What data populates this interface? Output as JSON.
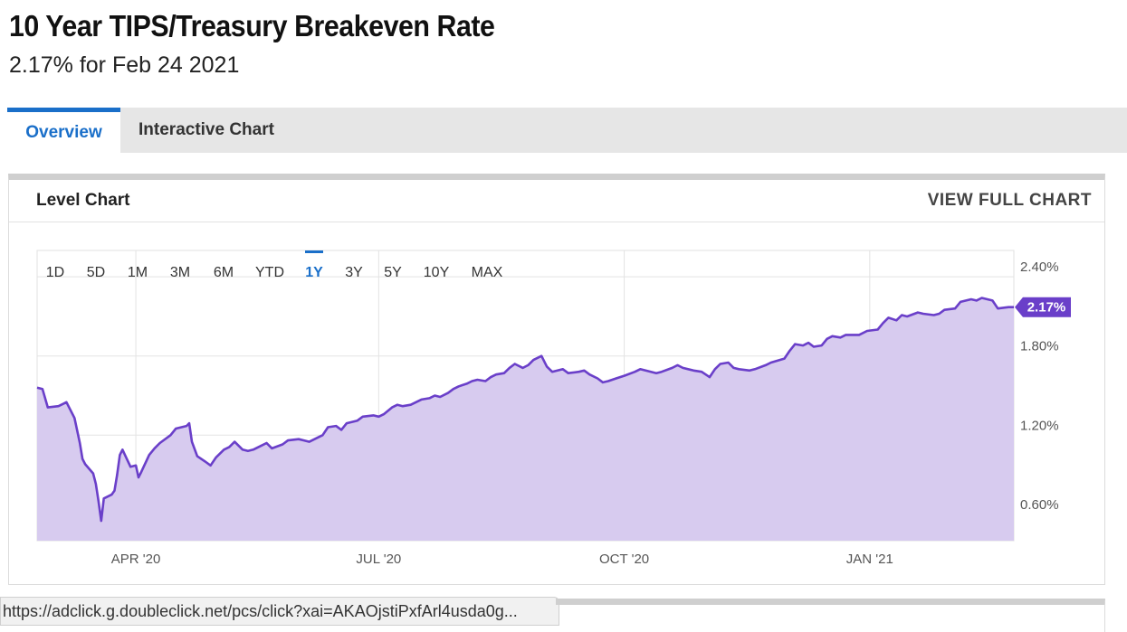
{
  "header": {
    "title": "10 Year TIPS/Treasury Breakeven Rate",
    "subtitle": "2.17% for Feb 24 2021"
  },
  "tabs": [
    {
      "label": "Overview",
      "active": true
    },
    {
      "label": "Interactive Chart",
      "active": false
    }
  ],
  "card": {
    "title": "Level Chart",
    "link_label": "VIEW FULL CHART"
  },
  "range_buttons": {
    "labels": [
      "1D",
      "5D",
      "1M",
      "3M",
      "6M",
      "YTD",
      "1Y",
      "3Y",
      "5Y",
      "10Y",
      "MAX"
    ],
    "selected": "1Y"
  },
  "colors": {
    "line": "#6a3fc9",
    "fill": "#d7cbef",
    "badge": "#6a3fc9",
    "accent": "#1a6fc9",
    "grid": "#e3e3e3"
  },
  "chart_data": {
    "type": "area",
    "title": "",
    "xlabel": "",
    "ylabel": "",
    "ylim": [
      0.4,
      2.6
    ],
    "xlim": [
      "2020-02-24",
      "2021-02-24"
    ],
    "x_ticks": [
      {
        "date": "2020-04-01",
        "label": "APR '20"
      },
      {
        "date": "2020-07-01",
        "label": "JUL '20"
      },
      {
        "date": "2020-10-01",
        "label": "OCT '20"
      },
      {
        "date": "2021-01-01",
        "label": "JAN '21"
      }
    ],
    "y_ticks": [
      {
        "value": 0.6,
        "label": "0.60%"
      },
      {
        "value": 1.2,
        "label": "1.20%"
      },
      {
        "value": 1.8,
        "label": "1.80%"
      },
      {
        "value": 2.4,
        "label": "2.40%"
      }
    ],
    "last_value_label": "2.17%",
    "grid": true,
    "series": [
      {
        "values": [
          [
            "2020-02-24",
            1.56
          ],
          [
            "2020-02-26",
            1.55
          ],
          [
            "2020-02-28",
            1.41
          ],
          [
            "2020-03-03",
            1.42
          ],
          [
            "2020-03-05",
            1.44
          ],
          [
            "2020-03-06",
            1.45
          ],
          [
            "2020-03-09",
            1.33
          ],
          [
            "2020-03-11",
            1.14
          ],
          [
            "2020-03-12",
            1.02
          ],
          [
            "2020-03-13",
            0.98
          ],
          [
            "2020-03-16",
            0.91
          ],
          [
            "2020-03-17",
            0.83
          ],
          [
            "2020-03-18",
            0.7
          ],
          [
            "2020-03-19",
            0.55
          ],
          [
            "2020-03-20",
            0.72
          ],
          [
            "2020-03-23",
            0.75
          ],
          [
            "2020-03-24",
            0.78
          ],
          [
            "2020-03-25",
            0.9
          ],
          [
            "2020-03-26",
            1.05
          ],
          [
            "2020-03-27",
            1.09
          ],
          [
            "2020-03-30",
            0.96
          ],
          [
            "2020-04-01",
            0.97
          ],
          [
            "2020-04-02",
            0.88
          ],
          [
            "2020-04-03",
            0.92
          ],
          [
            "2020-04-06",
            1.05
          ],
          [
            "2020-04-08",
            1.1
          ],
          [
            "2020-04-10",
            1.14
          ],
          [
            "2020-04-14",
            1.2
          ],
          [
            "2020-04-16",
            1.25
          ],
          [
            "2020-04-20",
            1.27
          ],
          [
            "2020-04-21",
            1.29
          ],
          [
            "2020-04-22",
            1.15
          ],
          [
            "2020-04-24",
            1.04
          ],
          [
            "2020-04-27",
            1.0
          ],
          [
            "2020-04-29",
            0.97
          ],
          [
            "2020-05-01",
            1.03
          ],
          [
            "2020-05-04",
            1.09
          ],
          [
            "2020-05-06",
            1.11
          ],
          [
            "2020-05-08",
            1.15
          ],
          [
            "2020-05-11",
            1.09
          ],
          [
            "2020-05-13",
            1.08
          ],
          [
            "2020-05-15",
            1.09
          ],
          [
            "2020-05-18",
            1.12
          ],
          [
            "2020-05-20",
            1.14
          ],
          [
            "2020-05-22",
            1.1
          ],
          [
            "2020-05-26",
            1.13
          ],
          [
            "2020-05-28",
            1.16
          ],
          [
            "2020-06-01",
            1.17
          ],
          [
            "2020-06-03",
            1.16
          ],
          [
            "2020-06-05",
            1.15
          ],
          [
            "2020-06-08",
            1.18
          ],
          [
            "2020-06-10",
            1.2
          ],
          [
            "2020-06-12",
            1.26
          ],
          [
            "2020-06-15",
            1.27
          ],
          [
            "2020-06-17",
            1.24
          ],
          [
            "2020-06-19",
            1.29
          ],
          [
            "2020-06-23",
            1.31
          ],
          [
            "2020-06-25",
            1.34
          ],
          [
            "2020-06-29",
            1.35
          ],
          [
            "2020-07-01",
            1.34
          ],
          [
            "2020-07-03",
            1.36
          ],
          [
            "2020-07-06",
            1.41
          ],
          [
            "2020-07-08",
            1.43
          ],
          [
            "2020-07-10",
            1.42
          ],
          [
            "2020-07-13",
            1.43
          ],
          [
            "2020-07-15",
            1.45
          ],
          [
            "2020-07-17",
            1.47
          ],
          [
            "2020-07-20",
            1.48
          ],
          [
            "2020-07-22",
            1.5
          ],
          [
            "2020-07-24",
            1.49
          ],
          [
            "2020-07-27",
            1.52
          ],
          [
            "2020-07-29",
            1.55
          ],
          [
            "2020-07-31",
            1.57
          ],
          [
            "2020-08-03",
            1.59
          ],
          [
            "2020-08-05",
            1.61
          ],
          [
            "2020-08-07",
            1.62
          ],
          [
            "2020-08-10",
            1.61
          ],
          [
            "2020-08-12",
            1.64
          ],
          [
            "2020-08-14",
            1.66
          ],
          [
            "2020-08-17",
            1.67
          ],
          [
            "2020-08-19",
            1.71
          ],
          [
            "2020-08-21",
            1.74
          ],
          [
            "2020-08-24",
            1.71
          ],
          [
            "2020-08-26",
            1.73
          ],
          [
            "2020-08-28",
            1.77
          ],
          [
            "2020-08-31",
            1.8
          ],
          [
            "2020-09-02",
            1.72
          ],
          [
            "2020-09-04",
            1.68
          ],
          [
            "2020-09-08",
            1.7
          ],
          [
            "2020-09-10",
            1.67
          ],
          [
            "2020-09-14",
            1.68
          ],
          [
            "2020-09-16",
            1.69
          ],
          [
            "2020-09-18",
            1.66
          ],
          [
            "2020-09-21",
            1.63
          ],
          [
            "2020-09-23",
            1.6
          ],
          [
            "2020-09-25",
            1.61
          ],
          [
            "2020-09-28",
            1.63
          ],
          [
            "2020-10-01",
            1.65
          ],
          [
            "2020-10-05",
            1.68
          ],
          [
            "2020-10-07",
            1.7
          ],
          [
            "2020-10-09",
            1.69
          ],
          [
            "2020-10-13",
            1.67
          ],
          [
            "2020-10-15",
            1.68
          ],
          [
            "2020-10-19",
            1.71
          ],
          [
            "2020-10-21",
            1.73
          ],
          [
            "2020-10-23",
            1.71
          ],
          [
            "2020-10-27",
            1.69
          ],
          [
            "2020-10-30",
            1.68
          ],
          [
            "2020-11-02",
            1.64
          ],
          [
            "2020-11-04",
            1.7
          ],
          [
            "2020-11-06",
            1.74
          ],
          [
            "2020-11-09",
            1.75
          ],
          [
            "2020-11-11",
            1.71
          ],
          [
            "2020-11-13",
            1.7
          ],
          [
            "2020-11-17",
            1.69
          ],
          [
            "2020-11-19",
            1.7
          ],
          [
            "2020-11-23",
            1.73
          ],
          [
            "2020-11-25",
            1.75
          ],
          [
            "2020-11-30",
            1.78
          ],
          [
            "2020-12-02",
            1.84
          ],
          [
            "2020-12-04",
            1.89
          ],
          [
            "2020-12-07",
            1.88
          ],
          [
            "2020-12-09",
            1.9
          ],
          [
            "2020-12-11",
            1.87
          ],
          [
            "2020-12-14",
            1.88
          ],
          [
            "2020-12-16",
            1.93
          ],
          [
            "2020-12-18",
            1.95
          ],
          [
            "2020-12-21",
            1.94
          ],
          [
            "2020-12-23",
            1.96
          ],
          [
            "2020-12-28",
            1.96
          ],
          [
            "2020-12-31",
            1.99
          ],
          [
            "2021-01-04",
            2.0
          ],
          [
            "2021-01-06",
            2.05
          ],
          [
            "2021-01-08",
            2.09
          ],
          [
            "2021-01-11",
            2.07
          ],
          [
            "2021-01-13",
            2.11
          ],
          [
            "2021-01-15",
            2.1
          ],
          [
            "2021-01-19",
            2.13
          ],
          [
            "2021-01-21",
            2.12
          ],
          [
            "2021-01-25",
            2.11
          ],
          [
            "2021-01-27",
            2.12
          ],
          [
            "2021-01-29",
            2.15
          ],
          [
            "2021-02-02",
            2.16
          ],
          [
            "2021-02-04",
            2.21
          ],
          [
            "2021-02-08",
            2.23
          ],
          [
            "2021-02-10",
            2.22
          ],
          [
            "2021-02-12",
            2.24
          ],
          [
            "2021-02-16",
            2.22
          ],
          [
            "2021-02-18",
            2.16
          ],
          [
            "2021-02-22",
            2.17
          ],
          [
            "2021-02-24",
            2.17
          ]
        ]
      }
    ]
  },
  "status_bar": {
    "text": "https://adclick.g.doubleclick.net/pcs/click?xai=AKAOjstiPxfArl4usda0g..."
  }
}
